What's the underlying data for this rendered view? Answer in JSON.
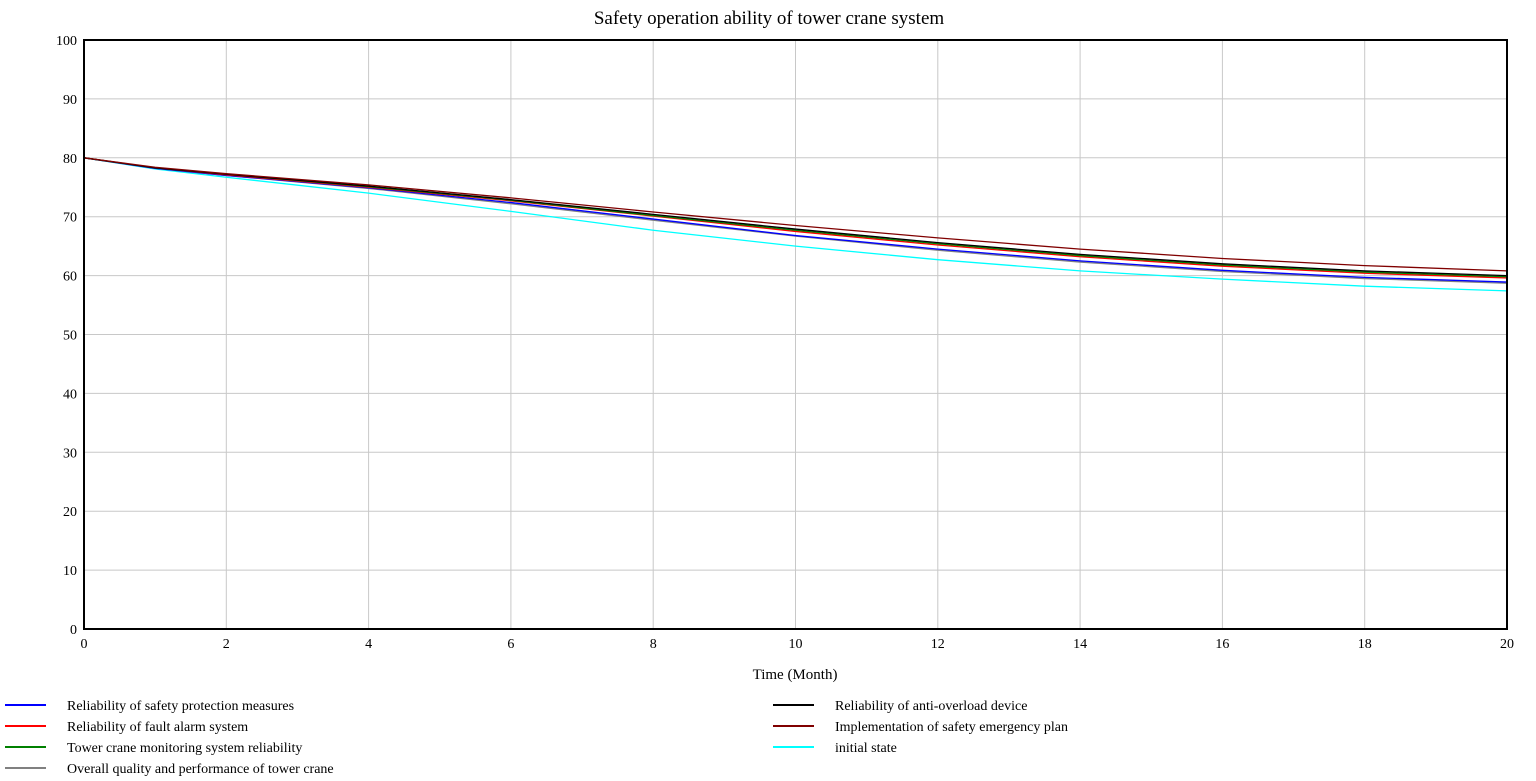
{
  "chart_data": {
    "type": "line",
    "title": "Safety operation ability of tower crane system",
    "xlabel": "Time (Month)",
    "ylabel": "",
    "xlim": [
      0,
      20
    ],
    "ylim": [
      0,
      100
    ],
    "x_ticks": [
      "0",
      "2",
      "4",
      "6",
      "8",
      "10",
      "12",
      "14",
      "16",
      "18",
      "20"
    ],
    "y_ticks": [
      "0",
      "10",
      "20",
      "30",
      "40",
      "50",
      "60",
      "70",
      "80",
      "90",
      "100"
    ],
    "grid": true,
    "legend_position": "bottom",
    "x": [
      0,
      1,
      2,
      4,
      6,
      8,
      10,
      12,
      14,
      16,
      18,
      20
    ],
    "series": [
      {
        "name": "Reliability of safety protection measures",
        "color": "#0000ff",
        "values": [
          80,
          78.2,
          77.0,
          74.9,
          72.4,
          69.6,
          66.8,
          64.5,
          62.5,
          60.9,
          59.7,
          58.9
        ]
      },
      {
        "name": "Reliability of fault alarm system",
        "color": "#ff0000",
        "values": [
          80,
          78.3,
          77.1,
          75.0,
          72.7,
          70.1,
          67.5,
          65.2,
          63.2,
          61.6,
          60.4,
          59.6
        ]
      },
      {
        "name": "Tower crane monitoring system reliability",
        "color": "#008000",
        "values": [
          80,
          78.3,
          77.2,
          75.1,
          72.8,
          70.2,
          67.7,
          65.4,
          63.4,
          61.8,
          60.6,
          59.8
        ]
      },
      {
        "name": "Overall quality and performance of tower crane",
        "color": "#808080",
        "values": [
          80,
          78.2,
          77.0,
          74.8,
          72.2,
          69.4,
          66.7,
          64.3,
          62.3,
          60.7,
          59.5,
          58.7
        ]
      },
      {
        "name": "Reliability of anti-overload device",
        "color": "#000000",
        "values": [
          80,
          78.3,
          77.2,
          75.2,
          72.9,
          70.4,
          67.9,
          65.6,
          63.6,
          62.0,
          60.8,
          60.0
        ]
      },
      {
        "name": "Implementation of safety emergency plan",
        "color": "#800000",
        "values": [
          80,
          78.4,
          77.3,
          75.4,
          73.2,
          70.8,
          68.5,
          66.4,
          64.5,
          62.9,
          61.7,
          60.8
        ]
      },
      {
        "name": "initial state",
        "color": "#00ffff",
        "values": [
          80,
          78.1,
          76.7,
          74.0,
          70.9,
          67.7,
          65.0,
          62.7,
          60.8,
          59.4,
          58.2,
          57.4
        ]
      }
    ]
  }
}
